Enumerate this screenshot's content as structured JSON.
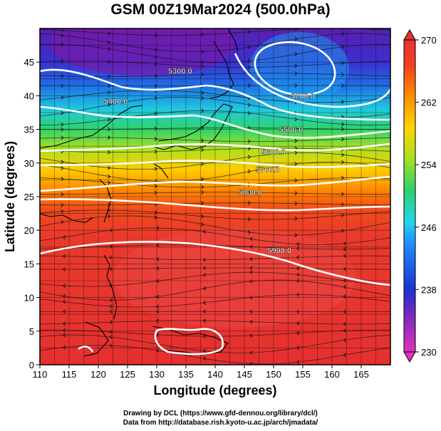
{
  "chart_data": {
    "type": "heatmap",
    "title": "GSM 00Z19Mar2024 (500.0hPa)",
    "xlabel": "Longitude (degrees)",
    "ylabel": "Latitude  (degrees)",
    "xlim": [
      110,
      170
    ],
    "ylim": [
      0,
      50
    ],
    "x_ticks": [
      110,
      115,
      120,
      125,
      130,
      135,
      140,
      145,
      150,
      155,
      160,
      165
    ],
    "y_ticks": [
      0,
      5,
      10,
      15,
      20,
      25,
      30,
      35,
      40,
      45
    ],
    "grid": true,
    "colorbar": {
      "min": 230,
      "max": 270,
      "ticks": [
        "230",
        "238",
        "246",
        "254",
        "262",
        "270"
      ],
      "colors": [
        "#e030c0",
        "#8a2bb8",
        "#1f2fd0",
        "#1e90ff",
        "#22d8e8",
        "#2ed06a",
        "#a8e020",
        "#ffd500",
        "#ff8c00",
        "#f04020",
        "#e63232"
      ]
    },
    "contours": [
      {
        "label": "5200.0",
        "x": 155,
        "y": 40
      },
      {
        "label": "5300.0",
        "x": 134,
        "y": 43.7
      },
      {
        "label": "5400.0",
        "x": 123,
        "y": 39.2
      },
      {
        "label": "5500.0",
        "x": 153,
        "y": 35
      },
      {
        "label": "5600.0",
        "x": 150,
        "y": 31.7
      },
      {
        "label": "5700.0",
        "x": 149,
        "y": 29
      },
      {
        "label": "5800.0",
        "x": 146,
        "y": 25.7
      },
      {
        "label": "5900.0",
        "x": 151,
        "y": 17
      }
    ],
    "colorfield": [
      {
        "lat": 48,
        "temp": 234
      },
      {
        "lat": 44,
        "temp": 237
      },
      {
        "lat": 40,
        "temp": 244
      },
      {
        "lat": 36,
        "temp": 252
      },
      {
        "lat": 32,
        "temp": 257
      },
      {
        "lat": 28,
        "temp": 261
      },
      {
        "lat": 24,
        "temp": 265
      },
      {
        "lat": 18,
        "temp": 268
      },
      {
        "lat": 10,
        "temp": 268
      },
      {
        "lat": 2,
        "temp": 268
      }
    ]
  },
  "credits": {
    "line1": "Drawing by DCL (https://www.gfd-dennou.org/library/dcl/)",
    "line2": "Data from http://database.rish.kyoto-u.ac.jp/arch/jmadata/"
  }
}
